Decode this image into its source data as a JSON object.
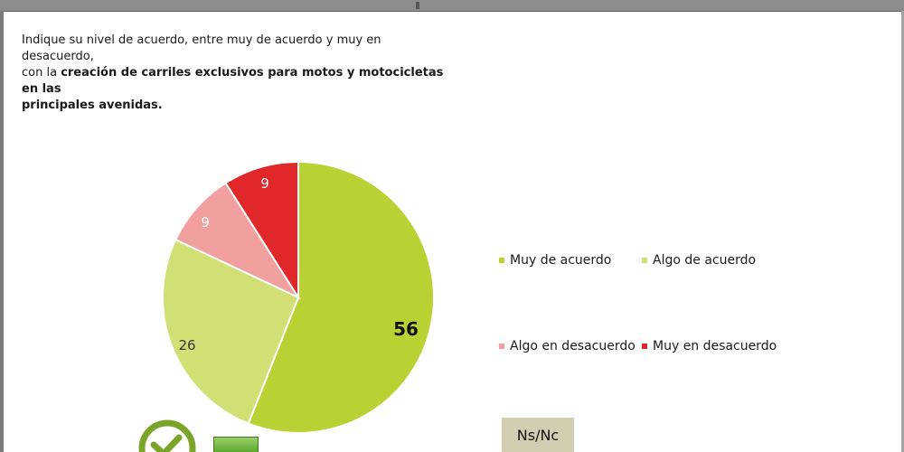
{
  "question": {
    "line1": "Indique su nivel de acuerdo, entre muy de acuerdo y muy en desacuerdo,",
    "line2_prefix": "con la ",
    "line2_bold": "creación de carriles exclusivos para motos y motocicletas en las",
    "line3_bold": "principales avenidas."
  },
  "chart_data": {
    "type": "pie",
    "title": "",
    "slices": [
      {
        "label": "Muy de acuerdo",
        "value": 56,
        "color": "#b9d132",
        "label_color": "#111111"
      },
      {
        "label": "Algo de acuerdo",
        "value": 26,
        "color": "#d1df75",
        "label_color": "#333333"
      },
      {
        "label": "Algo en desacuerdo",
        "value": 9,
        "color": "#f2a09f",
        "label_color": "#ffffff"
      },
      {
        "label": "Muy en desacuerdo",
        "value": 9,
        "color": "#e0272a",
        "label_color": "#ffffff"
      }
    ],
    "legend_placement": "right"
  },
  "nsnc": {
    "label": "Ns/Nc"
  },
  "icons": {
    "check": "check-circle-icon",
    "badge": "green-square-icon"
  }
}
